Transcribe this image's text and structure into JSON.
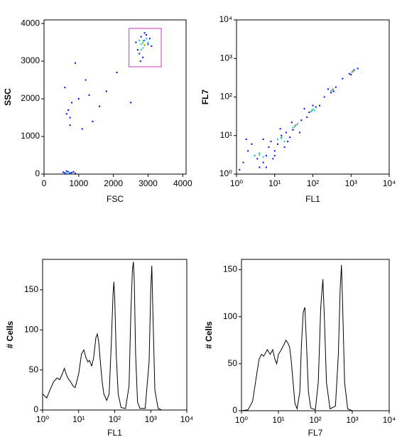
{
  "chart_data": [
    {
      "type": "scatter",
      "xlabel": "FSC",
      "ylabel": "SSC",
      "xlim": [
        0,
        4096
      ],
      "ylim": [
        0,
        4096
      ],
      "xticks": [
        0,
        1000,
        2000,
        3000,
        4000
      ],
      "yticks": [
        0,
        1000,
        2000,
        3000,
        4000
      ],
      "gate": {
        "x": [
          2450,
          3380
        ],
        "y": [
          2850,
          3870
        ],
        "color": "#cc33cc"
      },
      "series": [
        {
          "color": "#0000ff",
          "x": [
            2700,
            2800,
            2950,
            3050,
            3100,
            2650,
            2750,
            2900,
            2850,
            3000,
            2780,
            2880,
            600,
            700,
            800,
            900,
            550,
            650,
            750,
            850,
            700,
            650,
            750,
            800,
            600,
            1000,
            1200,
            1400,
            1800,
            1600,
            2100,
            1300,
            900,
            2500,
            750,
            1100
          ],
          "values": [
            3300,
            3650,
            3700,
            3600,
            3400,
            3500,
            3200,
            3750,
            3100,
            3450,
            3000,
            3550,
            30,
            60,
            40,
            20,
            50,
            80,
            25,
            60,
            1700,
            1600,
            1500,
            1900,
            2300,
            2000,
            2500,
            1400,
            2200,
            1800,
            2700,
            2100,
            2950,
            1900,
            1300,
            1200
          ]
        },
        {
          "color": "#00ccff",
          "x": [
            2800,
            2900,
            3000,
            2850,
            2950,
            2750,
            700,
            650
          ],
          "values": [
            3450,
            3550,
            3500,
            3350,
            3600,
            3550,
            40,
            30
          ]
        },
        {
          "color": "#22cc22",
          "x": [
            2850,
            2900,
            2800
          ],
          "values": [
            3500,
            3420,
            3300
          ]
        },
        {
          "color": "#ffcc00",
          "x": [
            2870
          ],
          "values": [
            3450
          ]
        }
      ]
    },
    {
      "type": "scatter",
      "xlabel": "FL1",
      "ylabel": "FL7",
      "xscale": "log",
      "yscale": "log",
      "xlim": [
        1,
        10000
      ],
      "ylim": [
        1,
        10000
      ],
      "xticks": [
        {
          "value": 1,
          "label": "10⁰"
        },
        {
          "value": 10,
          "label": "10¹"
        },
        {
          "value": 100,
          "label": "10²"
        },
        {
          "value": 1000,
          "label": "10³"
        },
        {
          "value": 10000,
          "label": "10⁴"
        }
      ],
      "yticks": [
        {
          "value": 1,
          "label": "10⁰"
        },
        {
          "value": 10,
          "label": "10¹"
        },
        {
          "value": 100,
          "label": "10²"
        },
        {
          "value": 1000,
          "label": "10³"
        },
        {
          "value": 10000,
          "label": "10⁴"
        }
      ],
      "series": [
        {
          "color": "#0000ff",
          "x": [
            1.5,
            2,
            3,
            5,
            7,
            10,
            2.5,
            4,
            6,
            8,
            12,
            15,
            20,
            25,
            18,
            30,
            40,
            50,
            80,
            120,
            70,
            100,
            300,
            250,
            400,
            900,
            1200,
            1500,
            1.2,
            3.5,
            6,
            9,
            14,
            22,
            28,
            45,
            60,
            150,
            350,
            1000,
            5,
            10,
            1.8,
            200,
            600
          ],
          "values": [
            2,
            4,
            3,
            2,
            5,
            4,
            6,
            1.5,
            3,
            7,
            6,
            10,
            12,
            9,
            5,
            14,
            20,
            25,
            40,
            55,
            30,
            60,
            130,
            160,
            180,
            400,
            500,
            550,
            1.3,
            2.5,
            1.5,
            2.5,
            15,
            7,
            22,
            12,
            50,
            60,
            140,
            380,
            8,
            3,
            8,
            100,
            300
          ]
        },
        {
          "color": "#00ccff",
          "x": [
            3,
            4,
            5,
            12,
            15,
            18,
            30,
            35,
            40,
            90,
            100,
            110,
            300,
            340,
            1050,
            1150
          ],
          "values": [
            3,
            3.5,
            2.8,
            8,
            9,
            7,
            16,
            18,
            20,
            42,
            48,
            45,
            145,
            160,
            440,
            470
          ]
        },
        {
          "color": "#22cc22",
          "x": [
            4,
            15,
            33,
            95,
            330,
            1100
          ],
          "values": [
            3.2,
            8.5,
            17,
            45,
            150,
            450
          ]
        },
        {
          "color": "#ff6600",
          "x": [
            36,
            330,
            1100
          ],
          "values": [
            19,
            155,
            460
          ]
        }
      ]
    },
    {
      "type": "line",
      "xlabel": "FL1",
      "ylabel": "# Cells",
      "xscale": "log",
      "xlim": [
        1,
        10000
      ],
      "ylim": [
        0,
        188
      ],
      "color": "#000000",
      "xticks": [
        {
          "value": 1,
          "label": "10⁰"
        },
        {
          "value": 10,
          "label": "10¹"
        },
        {
          "value": 100,
          "label": "10²"
        },
        {
          "value": 1000,
          "label": "10³"
        },
        {
          "value": 10000,
          "label": "10⁴"
        }
      ],
      "yticks": [
        0,
        50,
        100,
        150
      ],
      "x": [
        1,
        1.3,
        1.6,
        2,
        2.5,
        3,
        3.5,
        4,
        4.5,
        5,
        6,
        7,
        8,
        10,
        12,
        14,
        16,
        18,
        20,
        23,
        26,
        30,
        33,
        36,
        40,
        45,
        50,
        60,
        70,
        80,
        90,
        95,
        100,
        110,
        125,
        150,
        200,
        250,
        280,
        310,
        330,
        350,
        380,
        430,
        500,
        700,
        900,
        1000,
        1070,
        1150,
        1300,
        1600,
        2000,
        10000
      ],
      "values": [
        20,
        15,
        25,
        35,
        40,
        38,
        45,
        52,
        45,
        40,
        35,
        30,
        28,
        45,
        70,
        75,
        65,
        60,
        62,
        55,
        65,
        90,
        95,
        85,
        60,
        35,
        20,
        12,
        20,
        80,
        145,
        160,
        140,
        70,
        20,
        3,
        2,
        30,
        120,
        175,
        185,
        160,
        70,
        10,
        2,
        2,
        60,
        150,
        180,
        120,
        25,
        2,
        0,
        0
      ]
    },
    {
      "type": "line",
      "xlabel": "FL7",
      "ylabel": "# Cells",
      "xscale": "log",
      "xlim": [
        1,
        10000
      ],
      "ylim": [
        0,
        161
      ],
      "color": "#000000",
      "xticks": [
        {
          "value": 1,
          "label": "10⁰"
        },
        {
          "value": 10,
          "label": "10¹"
        },
        {
          "value": 100,
          "label": "10²"
        },
        {
          "value": 1000,
          "label": "10³"
        },
        {
          "value": 10000,
          "label": "10⁴"
        }
      ],
      "yticks": [
        0,
        50,
        100,
        150
      ],
      "x": [
        1,
        1.5,
        2,
        2.5,
        3,
        3.5,
        4,
        5,
        6,
        7,
        8,
        9,
        10,
        12,
        14,
        16,
        18,
        20,
        22,
        25,
        28,
        32,
        38,
        42,
        47,
        52,
        57,
        65,
        75,
        100,
        120,
        140,
        160,
        175,
        200,
        250,
        350,
        420,
        470,
        510,
        550,
        620,
        750,
        1000,
        10000
      ],
      "values": [
        0,
        1,
        10,
        35,
        55,
        60,
        58,
        65,
        60,
        65,
        55,
        50,
        60,
        65,
        70,
        75,
        72,
        68,
        55,
        30,
        8,
        2,
        20,
        70,
        105,
        110,
        75,
        20,
        3,
        1,
        30,
        110,
        140,
        100,
        30,
        2,
        5,
        60,
        130,
        155,
        110,
        30,
        2,
        0,
        0
      ]
    }
  ]
}
